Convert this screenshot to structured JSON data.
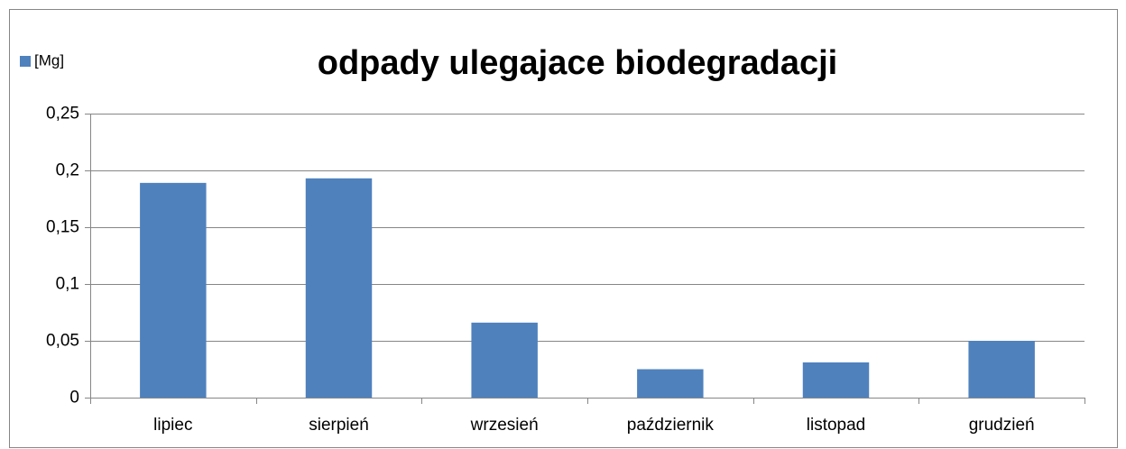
{
  "chart_data": {
    "type": "bar",
    "title": "odpady ulegajace biodegradacji",
    "categories": [
      "lipiec",
      "sierpień",
      "wrzesień",
      "październik",
      "listopad",
      "grudzień"
    ],
    "series": [
      {
        "name": "[Mg]",
        "color": "#4f81bd",
        "values": [
          0.189,
          0.193,
          0.066,
          0.025,
          0.031,
          0.05
        ]
      }
    ],
    "ylim": [
      0,
      0.25
    ],
    "yticks": [
      0,
      {
        "value": 0.05,
        "label": "0,05"
      },
      {
        "value": 0.1,
        "label": "0,1"
      },
      {
        "value": 0.15,
        "label": "0,15"
      },
      {
        "value": 0.2,
        "label": "0,2"
      },
      {
        "value": 0.25,
        "label": "0,25"
      }
    ],
    "grid": true,
    "legend": "top-left"
  }
}
